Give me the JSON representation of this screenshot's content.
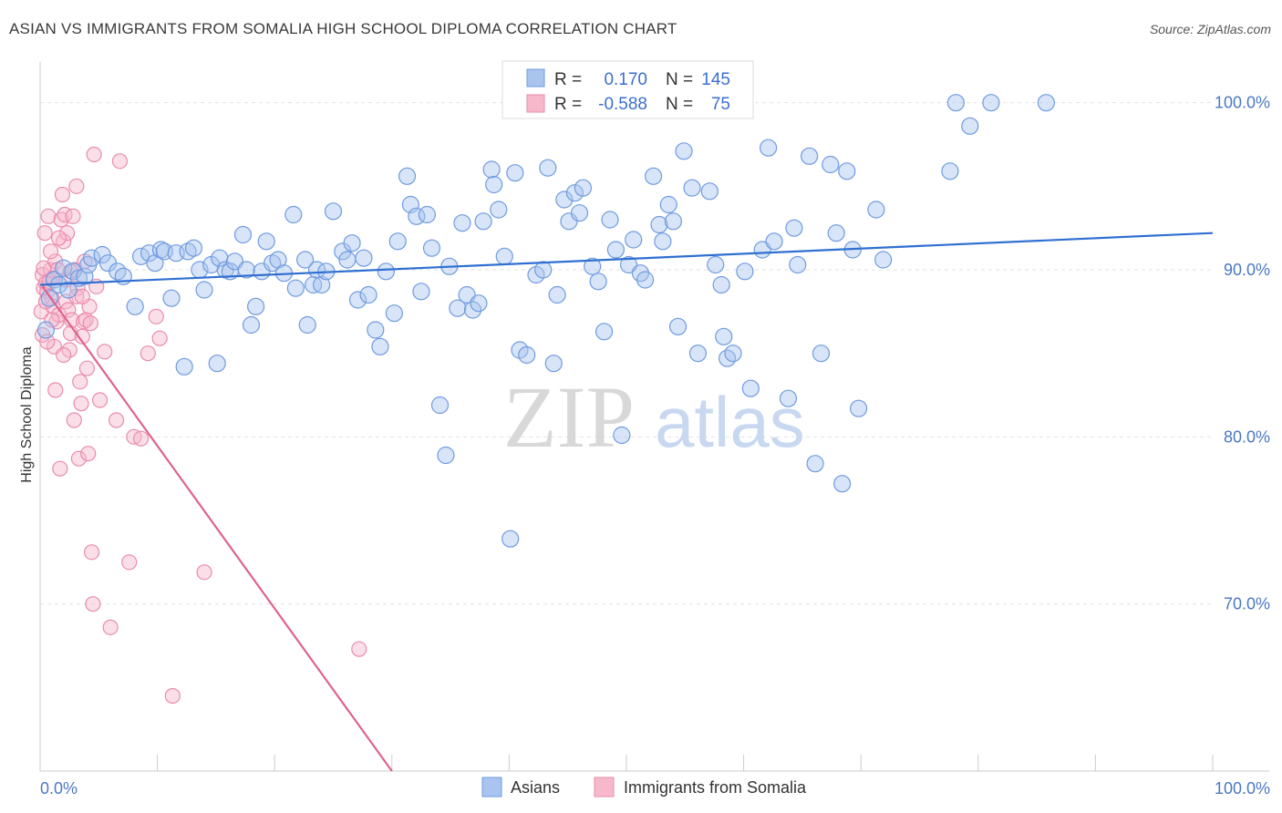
{
  "title": "ASIAN VS IMMIGRANTS FROM SOMALIA HIGH SCHOOL DIPLOMA CORRELATION CHART",
  "source": "Source: ZipAtlas.com",
  "watermark": {
    "zip": "ZIP",
    "atlas": "atlas"
  },
  "legend": {
    "rows": [
      {
        "r_label": "R =",
        "r_value": "0.170",
        "n_label": "N =",
        "n_value": "145",
        "color": "#a9c4ee",
        "stroke": "#6f9be0"
      },
      {
        "r_label": "R =",
        "r_value": "-0.588",
        "n_label": "N =",
        "n_value": "75",
        "color": "#f7b8cb",
        "stroke": "#e98bab"
      }
    ]
  },
  "bottom_legend": [
    {
      "label": "Asians",
      "color": "#a9c4ee",
      "stroke": "#6f9be0"
    },
    {
      "label": "Immigrants from Somalia",
      "color": "#f7b8cb",
      "stroke": "#e98bab"
    }
  ],
  "chart_data": {
    "type": "scatter",
    "title": "ASIAN VS IMMIGRANTS FROM SOMALIA HIGH SCHOOL DIPLOMA CORRELATION CHART",
    "xlabel": "",
    "ylabel": "High School Diploma",
    "x_tick_labels": [
      "0.0%",
      "100.0%"
    ],
    "y_tick_labels": [
      "100.0%",
      "90.0%",
      "80.0%",
      "70.0%"
    ],
    "y_ticks": [
      100,
      90,
      80,
      70
    ],
    "xlim": [
      0,
      100
    ],
    "ylim": [
      60,
      102
    ],
    "grid": true,
    "legend_position": "top-center",
    "series": [
      {
        "name": "Asians",
        "color": "#a9c4ee",
        "stroke": "#6f9be0",
        "trend": {
          "x": [
            0,
            100
          ],
          "y": [
            89.1,
            92.2
          ],
          "color": "#2f6fd1"
        },
        "points": [
          [
            0.5,
            86.4
          ],
          [
            0.8,
            88.3
          ],
          [
            1.2,
            89.4
          ],
          [
            1.6,
            89.1
          ],
          [
            2.0,
            90.1
          ],
          [
            2.4,
            88.8
          ],
          [
            2.8,
            89.9
          ],
          [
            3.3,
            89.5
          ],
          [
            3.8,
            89.6
          ],
          [
            4.1,
            90.3
          ],
          [
            4.4,
            90.7
          ],
          [
            5.3,
            90.9
          ],
          [
            5.8,
            90.4
          ],
          [
            6.6,
            89.9
          ],
          [
            7.1,
            89.6
          ],
          [
            8.1,
            87.8
          ],
          [
            8.6,
            90.8
          ],
          [
            9.3,
            91.0
          ],
          [
            9.8,
            90.4
          ],
          [
            10.3,
            91.2
          ],
          [
            10.6,
            91.1
          ],
          [
            11.2,
            88.3
          ],
          [
            11.6,
            91.0
          ],
          [
            12.3,
            84.2
          ],
          [
            12.6,
            91.1
          ],
          [
            13.1,
            91.3
          ],
          [
            13.6,
            90.0
          ],
          [
            14.0,
            88.8
          ],
          [
            14.6,
            90.3
          ],
          [
            15.1,
            84.4
          ],
          [
            15.3,
            90.7
          ],
          [
            15.8,
            90.0
          ],
          [
            16.2,
            89.9
          ],
          [
            16.6,
            90.5
          ],
          [
            17.3,
            92.1
          ],
          [
            17.6,
            90.0
          ],
          [
            18.0,
            86.7
          ],
          [
            18.4,
            87.8
          ],
          [
            18.9,
            89.9
          ],
          [
            19.3,
            91.7
          ],
          [
            19.8,
            90.4
          ],
          [
            20.3,
            90.6
          ],
          [
            20.8,
            89.8
          ],
          [
            21.6,
            93.3
          ],
          [
            21.8,
            88.9
          ],
          [
            22.6,
            90.6
          ],
          [
            22.8,
            86.7
          ],
          [
            23.3,
            89.1
          ],
          [
            23.6,
            90.0
          ],
          [
            24.0,
            89.1
          ],
          [
            24.4,
            89.9
          ],
          [
            25.0,
            93.5
          ],
          [
            25.8,
            91.1
          ],
          [
            26.2,
            90.6
          ],
          [
            26.6,
            91.6
          ],
          [
            27.1,
            88.2
          ],
          [
            27.6,
            90.7
          ],
          [
            28.0,
            88.5
          ],
          [
            28.6,
            86.4
          ],
          [
            29.0,
            85.4
          ],
          [
            29.5,
            89.9
          ],
          [
            30.2,
            87.4
          ],
          [
            30.5,
            91.7
          ],
          [
            31.3,
            95.6
          ],
          [
            31.6,
            93.9
          ],
          [
            32.1,
            93.2
          ],
          [
            32.5,
            88.7
          ],
          [
            33.0,
            93.3
          ],
          [
            33.4,
            91.3
          ],
          [
            34.1,
            81.9
          ],
          [
            34.6,
            78.9
          ],
          [
            34.9,
            90.2
          ],
          [
            35.6,
            87.7
          ],
          [
            36.0,
            92.8
          ],
          [
            36.4,
            88.5
          ],
          [
            36.9,
            87.6
          ],
          [
            37.4,
            88.0
          ],
          [
            37.8,
            92.9
          ],
          [
            38.5,
            96.0
          ],
          [
            38.7,
            95.1
          ],
          [
            39.1,
            93.6
          ],
          [
            39.6,
            90.8
          ],
          [
            40.1,
            73.9
          ],
          [
            40.5,
            95.8
          ],
          [
            40.9,
            85.2
          ],
          [
            41.5,
            84.9
          ],
          [
            42.3,
            89.7
          ],
          [
            42.9,
            90.0
          ],
          [
            43.3,
            96.1
          ],
          [
            43.8,
            84.4
          ],
          [
            44.1,
            88.5
          ],
          [
            44.7,
            94.2
          ],
          [
            45.1,
            92.9
          ],
          [
            45.6,
            94.6
          ],
          [
            46.0,
            93.4
          ],
          [
            46.3,
            94.9
          ],
          [
            47.1,
            90.2
          ],
          [
            47.6,
            89.3
          ],
          [
            48.1,
            86.3
          ],
          [
            48.6,
            93.0
          ],
          [
            49.1,
            91.2
          ],
          [
            49.6,
            80.1
          ],
          [
            50.2,
            90.3
          ],
          [
            50.6,
            91.8
          ],
          [
            51.2,
            89.8
          ],
          [
            51.6,
            89.4
          ],
          [
            52.3,
            95.6
          ],
          [
            52.8,
            92.7
          ],
          [
            53.1,
            91.7
          ],
          [
            53.6,
            93.9
          ],
          [
            54.0,
            92.9
          ],
          [
            54.4,
            86.6
          ],
          [
            54.9,
            97.1
          ],
          [
            55.6,
            94.9
          ],
          [
            56.1,
            85.0
          ],
          [
            57.1,
            94.7
          ],
          [
            57.6,
            90.3
          ],
          [
            58.1,
            89.1
          ],
          [
            58.3,
            86.0
          ],
          [
            58.6,
            84.7
          ],
          [
            59.1,
            85.0
          ],
          [
            60.1,
            89.9
          ],
          [
            60.6,
            82.9
          ],
          [
            61.6,
            91.2
          ],
          [
            62.1,
            97.3
          ],
          [
            62.6,
            91.7
          ],
          [
            63.8,
            82.3
          ],
          [
            64.3,
            92.5
          ],
          [
            64.6,
            90.3
          ],
          [
            65.6,
            96.8
          ],
          [
            66.1,
            78.4
          ],
          [
            66.6,
            85.0
          ],
          [
            67.4,
            96.3
          ],
          [
            67.9,
            92.2
          ],
          [
            68.4,
            77.2
          ],
          [
            68.8,
            95.9
          ],
          [
            69.3,
            91.2
          ],
          [
            69.8,
            81.7
          ],
          [
            71.3,
            93.6
          ],
          [
            71.9,
            90.6
          ],
          [
            77.6,
            95.9
          ],
          [
            78.1,
            100.0
          ],
          [
            79.3,
            98.6
          ],
          [
            81.1,
            100.0
          ],
          [
            85.8,
            100.0
          ]
        ]
      },
      {
        "name": "Immigrants from Somalia",
        "color": "#f7b8cb",
        "stroke": "#e98bab",
        "trend": {
          "x": [
            0.2,
            30.0
          ],
          "y": [
            89.0,
            60.0
          ],
          "color": "#e0628f"
        },
        "points": [
          [
            0.1,
            87.5
          ],
          [
            0.2,
            89.7
          ],
          [
            0.3,
            88.9
          ],
          [
            0.4,
            92.2
          ],
          [
            0.5,
            89.2
          ],
          [
            0.6,
            88.7
          ],
          [
            0.7,
            93.2
          ],
          [
            0.8,
            89.3
          ],
          [
            0.9,
            90.0
          ],
          [
            1.0,
            88.3
          ],
          [
            1.1,
            87.8
          ],
          [
            1.2,
            85.4
          ],
          [
            1.3,
            82.8
          ],
          [
            1.3,
            90.5
          ],
          [
            1.4,
            86.9
          ],
          [
            1.5,
            90.0
          ],
          [
            1.6,
            87.3
          ],
          [
            1.7,
            78.1
          ],
          [
            1.8,
            93.0
          ],
          [
            1.9,
            94.5
          ],
          [
            2.0,
            91.7
          ],
          [
            2.1,
            93.3
          ],
          [
            2.2,
            88.1
          ],
          [
            2.3,
            92.2
          ],
          [
            2.4,
            87.6
          ],
          [
            2.5,
            85.2
          ],
          [
            2.6,
            86.2
          ],
          [
            2.7,
            87.0
          ],
          [
            2.8,
            93.2
          ],
          [
            2.9,
            81.0
          ],
          [
            3.0,
            90.0
          ],
          [
            3.1,
            95.0
          ],
          [
            3.2,
            88.9
          ],
          [
            3.3,
            78.7
          ],
          [
            3.4,
            83.3
          ],
          [
            3.5,
            82.0
          ],
          [
            3.6,
            86.0
          ],
          [
            3.7,
            86.9
          ],
          [
            3.8,
            90.5
          ],
          [
            3.9,
            87.0
          ],
          [
            4.0,
            84.1
          ],
          [
            4.1,
            79.0
          ],
          [
            4.2,
            87.8
          ],
          [
            4.3,
            86.8
          ],
          [
            4.4,
            73.1
          ],
          [
            4.5,
            70.0
          ],
          [
            4.6,
            96.9
          ],
          [
            4.8,
            89.0
          ],
          [
            5.1,
            82.2
          ],
          [
            5.5,
            85.1
          ],
          [
            6.0,
            68.6
          ],
          [
            6.5,
            81.0
          ],
          [
            6.8,
            96.5
          ],
          [
            7.6,
            72.5
          ],
          [
            8.0,
            80.0
          ],
          [
            8.6,
            79.9
          ],
          [
            9.2,
            85.0
          ],
          [
            9.9,
            87.2
          ],
          [
            10.2,
            85.9
          ],
          [
            11.3,
            64.5
          ],
          [
            14.0,
            71.9
          ],
          [
            27.2,
            67.3
          ],
          [
            0.3,
            90.1
          ],
          [
            0.5,
            88.1
          ],
          [
            0.9,
            91.1
          ],
          [
            1.1,
            89.5
          ],
          [
            1.6,
            91.9
          ],
          [
            2.2,
            89.4
          ],
          [
            2.6,
            89.9
          ],
          [
            3.1,
            88.4
          ],
          [
            3.6,
            88.4
          ],
          [
            0.2,
            86.1
          ],
          [
            0.6,
            85.7
          ],
          [
            1.0,
            87.0
          ],
          [
            2.0,
            84.9
          ]
        ]
      }
    ]
  }
}
